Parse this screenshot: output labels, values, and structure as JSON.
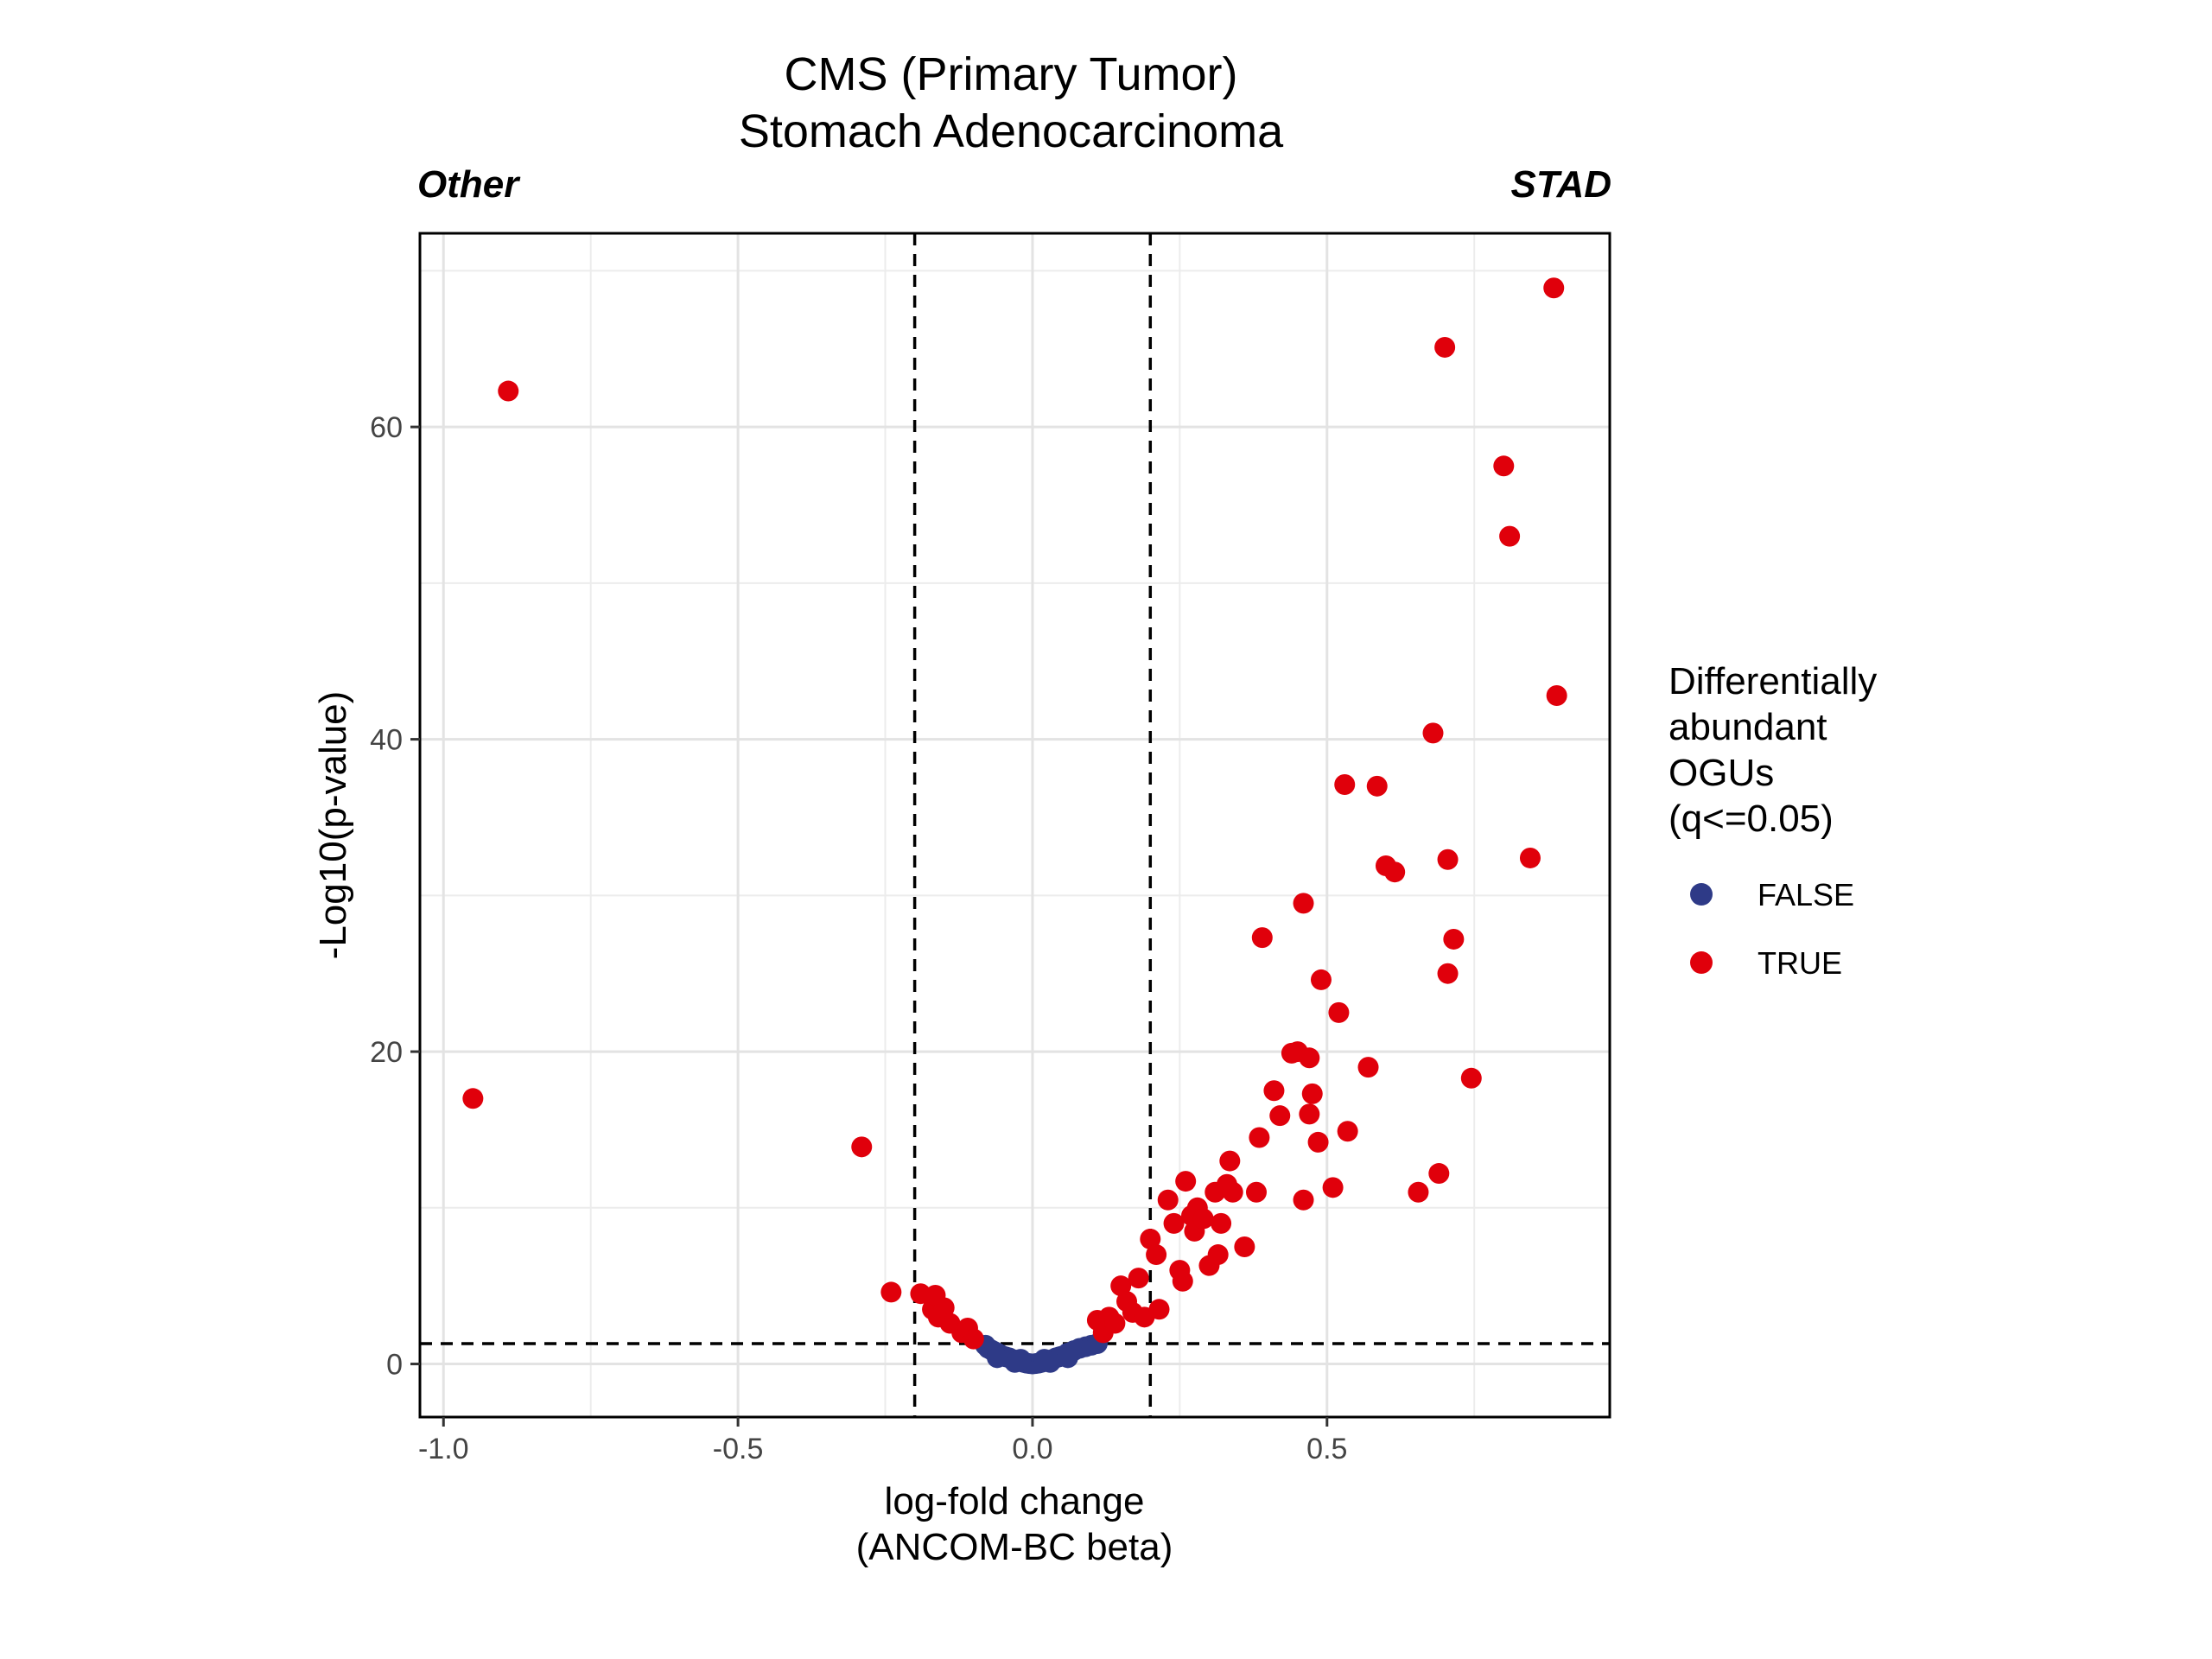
{
  "chart_data": {
    "type": "scatter",
    "title": "CMS (Primary Tumor)",
    "subtitle": "Stomach Adenocarcinoma",
    "left_label": "Other",
    "right_label": "STAD",
    "xlabel": "log-fold change",
    "xlabel2": "(ANCOM-BC beta)",
    "ylabel": "-Log10(p-value)",
    "xlim": [
      -1.04,
      0.98
    ],
    "ylim": [
      -3.4,
      72.4
    ],
    "xticks": [
      -1.0,
      -0.5,
      0.0,
      0.5
    ],
    "xtick_labels": [
      "-1.0",
      "-0.5",
      "0.0",
      "0.5"
    ],
    "yticks": [
      0,
      20,
      40,
      60
    ],
    "ytick_labels": [
      "0",
      "20",
      "40",
      "60"
    ],
    "grid": true,
    "thresholds": {
      "x": [
        -0.2,
        0.2
      ],
      "y": 1.3
    },
    "legend": {
      "title": [
        "Differentially",
        "abundant",
        "OGUs",
        "(q<=0.05)"
      ],
      "position": "right",
      "entries": [
        {
          "label": "FALSE",
          "color": "#2e3a87"
        },
        {
          "label": "TRUE",
          "color": "#e0000b"
        }
      ]
    },
    "series": [
      {
        "name": "FALSE",
        "color": "#2e3a87",
        "points": [
          [
            -0.08,
            1.2
          ],
          [
            -0.075,
            1.0
          ],
          [
            -0.07,
            0.9
          ],
          [
            -0.065,
            0.8
          ],
          [
            -0.06,
            0.7
          ],
          [
            -0.055,
            0.6
          ],
          [
            -0.05,
            0.5
          ],
          [
            -0.045,
            0.45
          ],
          [
            -0.04,
            0.4
          ],
          [
            -0.035,
            0.3
          ],
          [
            -0.03,
            0.25
          ],
          [
            -0.025,
            0.2
          ],
          [
            -0.02,
            0.15
          ],
          [
            -0.015,
            0.1
          ],
          [
            -0.01,
            0.05
          ],
          [
            -0.005,
            0.02
          ],
          [
            0.0,
            0.0
          ],
          [
            0.005,
            0.02
          ],
          [
            0.01,
            0.05
          ],
          [
            0.015,
            0.1
          ],
          [
            0.02,
            0.15
          ],
          [
            0.025,
            0.2
          ],
          [
            0.03,
            0.25
          ],
          [
            0.035,
            0.3
          ],
          [
            0.04,
            0.4
          ],
          [
            0.045,
            0.45
          ],
          [
            0.05,
            0.5
          ],
          [
            0.06,
            0.7
          ],
          [
            0.07,
            0.85
          ],
          [
            0.08,
            1.0
          ],
          [
            0.09,
            1.1
          ],
          [
            0.1,
            1.2
          ],
          [
            0.11,
            1.3
          ],
          [
            -0.02,
            0.3
          ],
          [
            0.02,
            0.3
          ],
          [
            0.03,
            0.1
          ],
          [
            -0.03,
            0.1
          ],
          [
            0.06,
            0.4
          ],
          [
            -0.06,
            0.4
          ]
        ]
      },
      {
        "name": "TRUE",
        "color": "#e0000b",
        "points": [
          [
            -0.89,
            62.3
          ],
          [
            -0.95,
            17.0
          ],
          [
            -0.29,
            13.9
          ],
          [
            -0.24,
            4.6
          ],
          [
            -0.19,
            4.5
          ],
          [
            -0.17,
            3.5
          ],
          [
            -0.165,
            4.4
          ],
          [
            -0.16,
            3.0
          ],
          [
            -0.15,
            3.6
          ],
          [
            -0.14,
            2.6
          ],
          [
            -0.12,
            2.0
          ],
          [
            -0.11,
            2.3
          ],
          [
            -0.1,
            1.6
          ],
          [
            0.11,
            2.8
          ],
          [
            0.12,
            2.0
          ],
          [
            0.13,
            3.0
          ],
          [
            0.14,
            2.6
          ],
          [
            0.15,
            5.0
          ],
          [
            0.16,
            4.0
          ],
          [
            0.17,
            3.3
          ],
          [
            0.18,
            5.5
          ],
          [
            0.19,
            3.0
          ],
          [
            0.2,
            8.0
          ],
          [
            0.21,
            7.0
          ],
          [
            0.215,
            3.5
          ],
          [
            0.23,
            10.5
          ],
          [
            0.24,
            9.0
          ],
          [
            0.25,
            6.0
          ],
          [
            0.255,
            5.3
          ],
          [
            0.26,
            11.7
          ],
          [
            0.27,
            9.5
          ],
          [
            0.275,
            8.5
          ],
          [
            0.28,
            10.0
          ],
          [
            0.29,
            9.3
          ],
          [
            0.3,
            6.3
          ],
          [
            0.31,
            11.0
          ],
          [
            0.315,
            7.0
          ],
          [
            0.32,
            9.0
          ],
          [
            0.33,
            11.5
          ],
          [
            0.335,
            13.0
          ],
          [
            0.34,
            11.0
          ],
          [
            0.36,
            7.5
          ],
          [
            0.38,
            11.0
          ],
          [
            0.385,
            14.5
          ],
          [
            0.39,
            27.3
          ],
          [
            0.41,
            17.5
          ],
          [
            0.42,
            15.9
          ],
          [
            0.44,
            19.9
          ],
          [
            0.45,
            20.0
          ],
          [
            0.46,
            29.5
          ],
          [
            0.46,
            10.5
          ],
          [
            0.47,
            19.6
          ],
          [
            0.47,
            16.0
          ],
          [
            0.475,
            17.3
          ],
          [
            0.485,
            14.2
          ],
          [
            0.49,
            24.6
          ],
          [
            0.51,
            11.3
          ],
          [
            0.52,
            22.5
          ],
          [
            0.53,
            37.1
          ],
          [
            0.535,
            14.9
          ],
          [
            0.57,
            19.0
          ],
          [
            0.585,
            37.0
          ],
          [
            0.6,
            31.9
          ],
          [
            0.615,
            31.5
          ],
          [
            0.655,
            11.0
          ],
          [
            0.68,
            40.4
          ],
          [
            0.69,
            12.2
          ],
          [
            0.7,
            65.1
          ],
          [
            0.705,
            32.3
          ],
          [
            0.705,
            25.0
          ],
          [
            0.715,
            27.2
          ],
          [
            0.745,
            18.3
          ],
          [
            0.8,
            57.5
          ],
          [
            0.81,
            53.0
          ],
          [
            0.845,
            32.4
          ],
          [
            0.885,
            68.9
          ],
          [
            0.89,
            42.8
          ]
        ]
      }
    ]
  }
}
